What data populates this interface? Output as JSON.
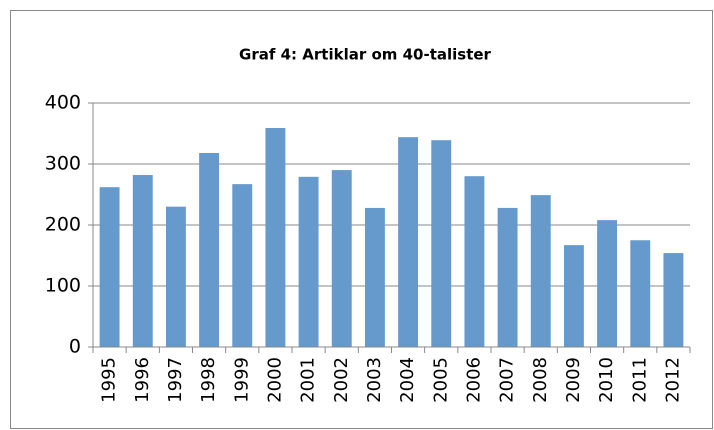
{
  "chart_data": {
    "type": "bar",
    "title": "Graf 4: Artiklar om 40-talister",
    "categories": [
      "1995",
      "1996",
      "1997",
      "1998",
      "1999",
      "2000",
      "2001",
      "2002",
      "2003",
      "2004",
      "2005",
      "2006",
      "2007",
      "2008",
      "2009",
      "2010",
      "2011",
      "2012"
    ],
    "values": [
      262,
      282,
      230,
      318,
      267,
      359,
      279,
      290,
      228,
      344,
      339,
      280,
      228,
      249,
      167,
      208,
      175,
      154
    ],
    "color": "#6699cc",
    "ylim": [
      0,
      400
    ],
    "yticks": [
      0,
      100,
      200,
      300,
      400
    ],
    "grid": true
  }
}
